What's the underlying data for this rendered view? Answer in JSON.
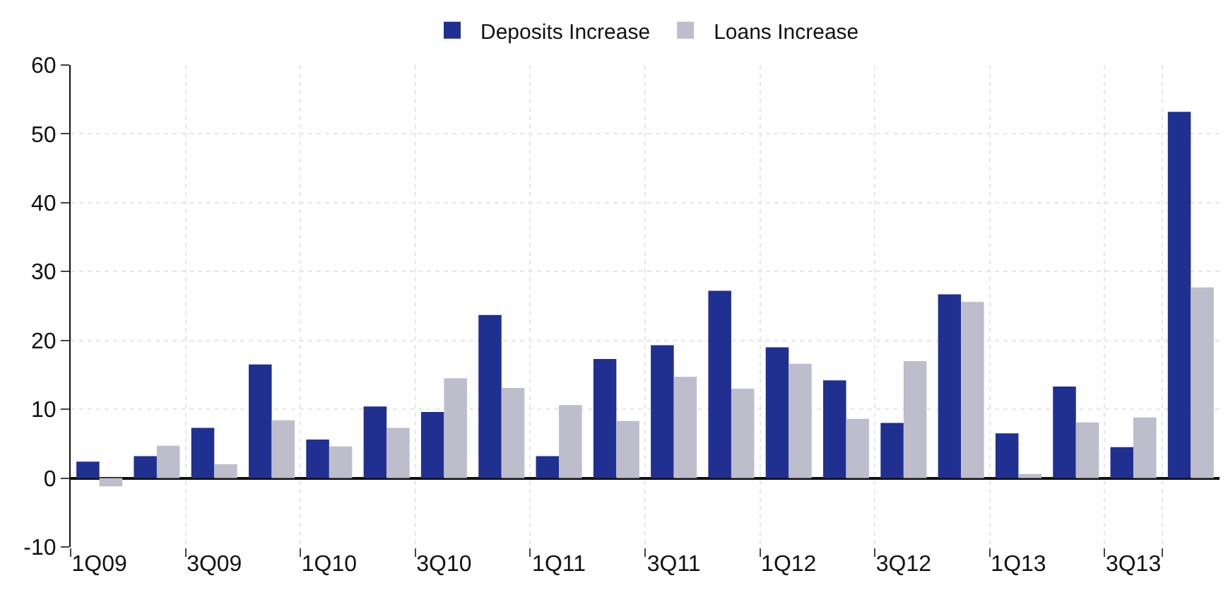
{
  "chart_data": {
    "type": "bar",
    "categories": [
      "1Q09",
      null,
      "3Q09",
      null,
      "1Q10",
      null,
      "3Q10",
      null,
      "1Q11",
      null,
      "3Q11",
      null,
      "1Q12",
      null,
      "3Q12",
      null,
      "1Q13",
      null,
      "3Q13",
      null
    ],
    "series": [
      {
        "name": "Deposits Increase",
        "color": "#1f3090",
        "values": [
          2.4,
          3.2,
          7.3,
          16.5,
          5.6,
          10.4,
          9.6,
          23.7,
          3.2,
          17.3,
          19.3,
          27.2,
          19.0,
          14.2,
          8.0,
          26.7,
          6.5,
          13.3,
          4.5,
          53.2
        ]
      },
      {
        "name": "Loans Increase",
        "color": "#bebdcc",
        "values": [
          -1.2,
          4.7,
          2.0,
          8.4,
          4.6,
          7.3,
          14.5,
          13.1,
          10.6,
          8.3,
          14.7,
          13.0,
          16.6,
          8.6,
          17.0,
          25.6,
          0.6,
          8.1,
          8.8,
          27.7
        ]
      }
    ],
    "ylim": [
      -10,
      60
    ],
    "yticks": [
      -10,
      0,
      10,
      20,
      30,
      40,
      50,
      60
    ],
    "grid": true,
    "legend": "top"
  }
}
